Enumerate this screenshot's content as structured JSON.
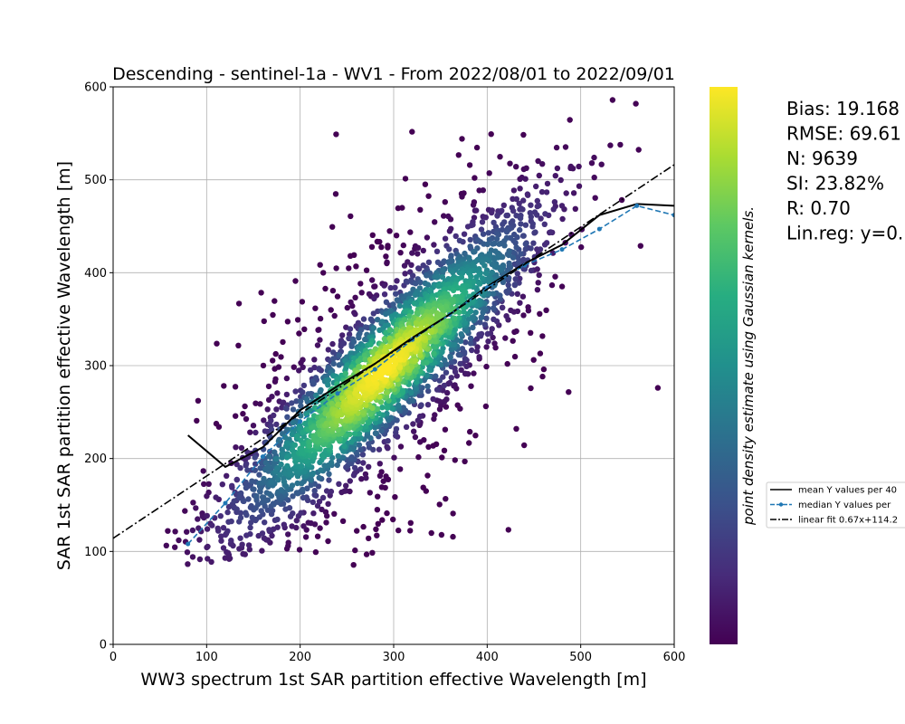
{
  "chart_data": {
    "type": "scatter",
    "title": "Descending - sentinel-1a - WV1 - From 2022/08/01 to 2022/09/01",
    "xlabel": "WW3 spectrum 1st SAR partition effective Wavelength [m]",
    "ylabel": "SAR 1st SAR partition effective Wavelength [m]",
    "xlim": [
      0,
      600
    ],
    "ylim": [
      0,
      600
    ],
    "x_ticks": [
      "0",
      "100",
      "200",
      "300",
      "400",
      "500",
      "600"
    ],
    "y_ticks": [
      "0",
      "100",
      "200",
      "300",
      "400",
      "500",
      "600"
    ],
    "grid": true,
    "colorbar_label": "point density estimate using Gaussian kernels.",
    "colormap": "viridis",
    "colormap_stops": [
      "#440154",
      "#472c7a",
      "#3b518b",
      "#2c718e",
      "#21908d",
      "#27ad81",
      "#5cc863",
      "#aadc32",
      "#fde725"
    ],
    "stats": [
      "Bias: 19.168",
      "RMSE: 69.61",
      "N: 9639",
      "SI: 23.82%",
      "R: 0.70",
      "Lin.reg: y=0."
    ],
    "legend": {
      "placement": "right, outside the plot",
      "entries": [
        {
          "label": "mean Y values per 40",
          "color": "#000000",
          "style": "solid"
        },
        {
          "label": "median Y values per",
          "color": "#1f77b4",
          "style": "dashed-dot-marker"
        },
        {
          "label": "linear fit 0.67x+114.2",
          "color": "#000000",
          "style": "dashdot"
        }
      ]
    },
    "series": [
      {
        "name": "mean Y values per 40",
        "color": "#000000",
        "x": [
          80,
          120,
          160,
          200,
          240,
          280,
          320,
          360,
          400,
          440,
          480,
          520,
          560,
          600
        ],
        "y": [
          225,
          191,
          212,
          252,
          278,
          302,
          330,
          355,
          385,
          410,
          430,
          462,
          474,
          472
        ]
      },
      {
        "name": "median Y values per",
        "color": "#1f77b4",
        "x": [
          80,
          120,
          160,
          200,
          240,
          280,
          320,
          360,
          400,
          440,
          480,
          520,
          560,
          600
        ],
        "y": [
          108,
          152,
          202,
          240,
          270,
          296,
          328,
          355,
          384,
          408,
          425,
          447,
          472,
          462
        ]
      },
      {
        "name": "linear fit 0.67x+114.2",
        "color": "#000000",
        "x": [
          0,
          600
        ],
        "y": [
          114.2,
          516.2
        ]
      }
    ],
    "scatter_description_points": 9639
  }
}
